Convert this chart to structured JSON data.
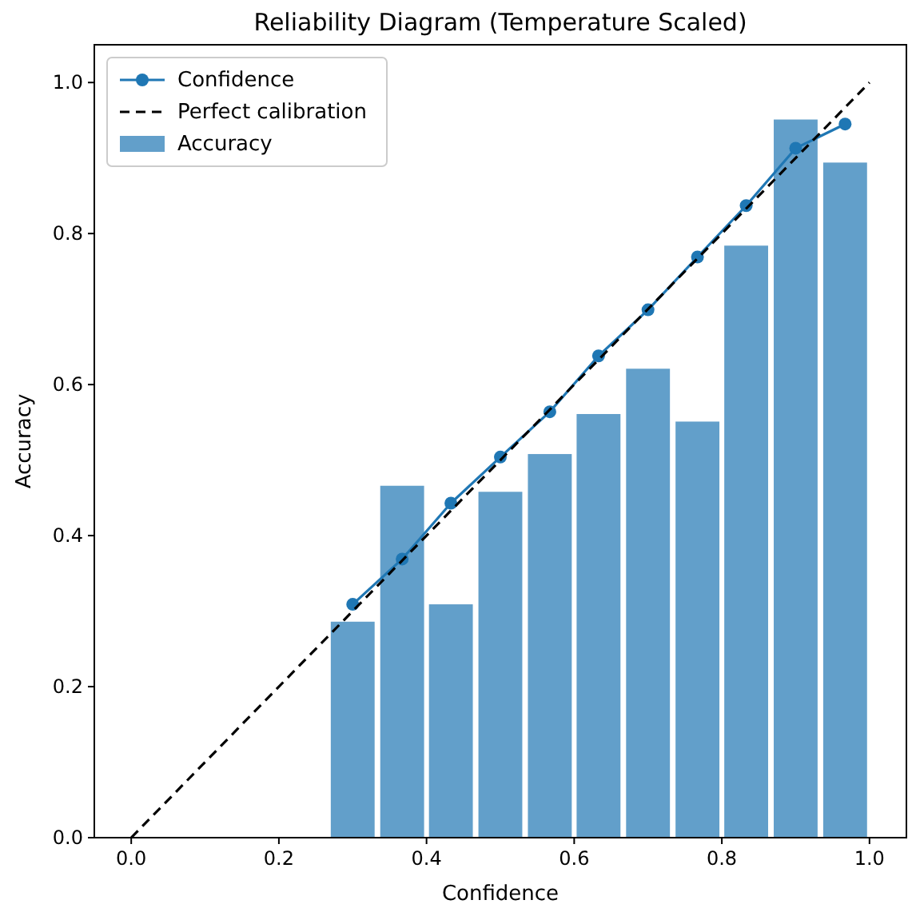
{
  "chart_data": {
    "type": "bar",
    "title": "Reliability Diagram (Temperature Scaled)",
    "xlabel": "Confidence",
    "ylabel": "Accuracy",
    "xlim": [
      -0.05,
      1.05
    ],
    "ylim": [
      0,
      1.05
    ],
    "xticks": [
      {
        "value": 0,
        "label": "0.0"
      },
      {
        "value": 0.2,
        "label": "0.2"
      },
      {
        "value": 0.4,
        "label": "0.4"
      },
      {
        "value": 0.6,
        "label": "0.6"
      },
      {
        "value": 0.8,
        "label": "0.8"
      },
      {
        "value": 1,
        "label": "1.0"
      }
    ],
    "yticks": [
      {
        "value": 0,
        "label": "0.0"
      },
      {
        "value": 0.2,
        "label": "0.2"
      },
      {
        "value": 0.4,
        "label": "0.4"
      },
      {
        "value": 0.6,
        "label": "0.6"
      },
      {
        "value": 0.8,
        "label": "0.8"
      },
      {
        "value": 1,
        "label": "1.0"
      }
    ],
    "legend": "top left",
    "grid": false,
    "series": [
      {
        "name": "Confidence",
        "type": "line",
        "marker": "circle",
        "line_style": "solid",
        "color": "#1f77b4",
        "x": [
          0.3,
          0.367,
          0.433,
          0.5,
          0.567,
          0.633,
          0.7,
          0.767,
          0.833,
          0.9,
          0.967
        ],
        "values": [
          0.309,
          0.369,
          0.443,
          0.504,
          0.564,
          0.638,
          0.699,
          0.769,
          0.837,
          0.913,
          0.945
        ]
      },
      {
        "name": "Perfect calibration",
        "type": "line",
        "marker": "none",
        "line_style": "dashed",
        "color": "#000000",
        "x": [
          0,
          1
        ],
        "values": [
          0,
          1
        ]
      },
      {
        "name": "Accuracy",
        "color": "#629fca",
        "x": [
          0.3,
          0.367,
          0.433,
          0.5,
          0.567,
          0.633,
          0.7,
          0.767,
          0.833,
          0.9,
          0.967
        ],
        "values": [
          0.286,
          0.466,
          0.309,
          0.458,
          0.508,
          0.561,
          0.621,
          0.551,
          0.784,
          0.951,
          0.894
        ]
      }
    ]
  }
}
